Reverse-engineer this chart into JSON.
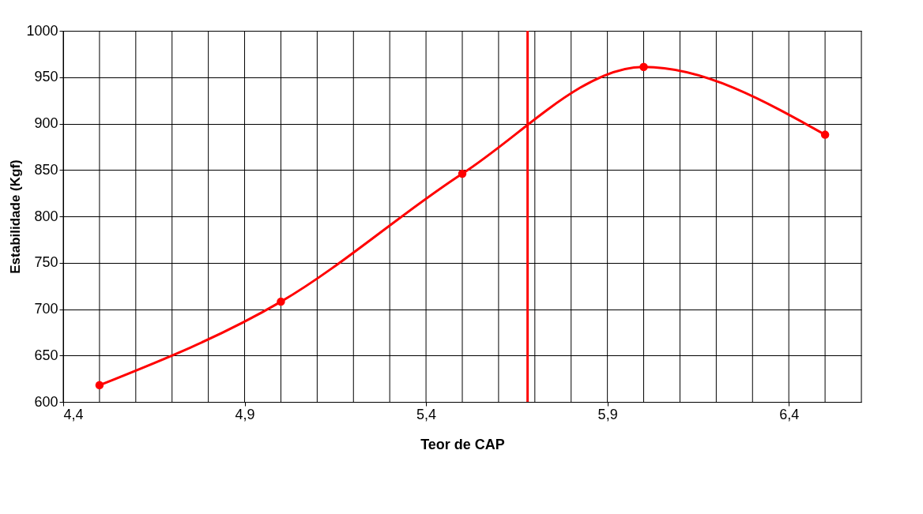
{
  "chart_data": {
    "type": "line",
    "xlabel": "Teor de CAP",
    "ylabel": "Estabilidade  (Kgf)",
    "x": [
      4.5,
      5.0,
      5.5,
      6.0,
      6.5
    ],
    "series": [
      {
        "color": "#ff0000",
        "values": [
          618,
          708,
          846,
          961,
          888
        ]
      }
    ],
    "xlim": [
      4.4,
      6.6
    ],
    "xticks": [
      {
        "value": 4.4,
        "label": "4,4"
      },
      {
        "value": 4.9,
        "label": "4,9"
      },
      {
        "value": 5.4,
        "label": "5,4"
      },
      {
        "value": 5.9,
        "label": "5,9"
      },
      {
        "value": 6.4,
        "label": "6,4"
      }
    ],
    "ylim": [
      600,
      1000
    ],
    "yticks": [
      600,
      650,
      700,
      750,
      800,
      850,
      900,
      950,
      1000
    ],
    "ref_lines": [
      {
        "axis": "x",
        "value": 5.68,
        "color": "#ff0000"
      }
    ],
    "grid": true,
    "marker": "circle",
    "line_style": "solid",
    "legend": false
  }
}
